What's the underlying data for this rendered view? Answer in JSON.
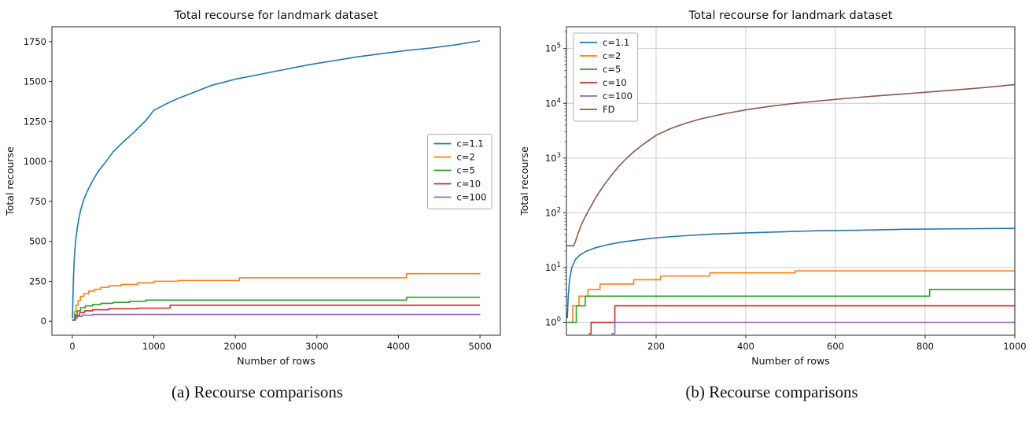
{
  "page": {
    "background": "#ffffff"
  },
  "colors": {
    "blue": "#1f77b4",
    "orange": "#ff7f0e",
    "green": "#2ca02c",
    "red": "#d62728",
    "purple": "#9467bd",
    "brown": "#8c564b",
    "grid": "#c9c9c9",
    "axis": "#262626",
    "legend_border": "#b0b0b0"
  },
  "chart_data": [
    {
      "type": "line",
      "caption": "(a) Recourse comparisons",
      "title": "Total recourse for landmark dataset",
      "xlabel": "Number of rows",
      "ylabel": "Total recourse",
      "yscale": "linear",
      "xlim": [
        -250,
        5250
      ],
      "ylim": [
        -88,
        1843
      ],
      "xticks": [
        0,
        1000,
        2000,
        3000,
        4000,
        5000
      ],
      "yticks": [
        0,
        250,
        500,
        750,
        1000,
        1250,
        1500,
        1750
      ],
      "grid": false,
      "legend": {
        "position": "center-right"
      },
      "series": [
        {
          "name": "c=1.1",
          "color_key": "blue",
          "step": false,
          "points": [
            [
              2,
              20
            ],
            [
              8,
              150
            ],
            [
              15,
              280
            ],
            [
              25,
              400
            ],
            [
              40,
              500
            ],
            [
              60,
              580
            ],
            [
              80,
              640
            ],
            [
              100,
              690
            ],
            [
              140,
              760
            ],
            [
              180,
              810
            ],
            [
              250,
              880
            ],
            [
              320,
              940
            ],
            [
              400,
              990
            ],
            [
              500,
              1060
            ],
            [
              620,
              1120
            ],
            [
              750,
              1180
            ],
            [
              900,
              1255
            ],
            [
              1000,
              1320
            ],
            [
              1150,
              1360
            ],
            [
              1300,
              1395
            ],
            [
              1500,
              1435
            ],
            [
              1700,
              1475
            ],
            [
              2000,
              1515
            ],
            [
              2300,
              1545
            ],
            [
              2600,
              1575
            ],
            [
              2900,
              1605
            ],
            [
              3200,
              1630
            ],
            [
              3500,
              1655
            ],
            [
              3800,
              1675
            ],
            [
              4100,
              1695
            ],
            [
              4400,
              1710
            ],
            [
              4700,
              1730
            ],
            [
              5000,
              1755
            ]
          ]
        },
        {
          "name": "c=2",
          "color_key": "orange",
          "step": true,
          "points": [
            [
              0,
              10
            ],
            [
              25,
              60
            ],
            [
              45,
              100
            ],
            [
              70,
              130
            ],
            [
              100,
              155
            ],
            [
              140,
              172
            ],
            [
              200,
              188
            ],
            [
              270,
              200
            ],
            [
              350,
              212
            ],
            [
              450,
              222
            ],
            [
              600,
              230
            ],
            [
              800,
              240
            ],
            [
              1000,
              250
            ],
            [
              1300,
              255
            ],
            [
              2050,
              272
            ],
            [
              4100,
              298
            ],
            [
              5000,
              300
            ]
          ]
        },
        {
          "name": "c=5",
          "color_key": "green",
          "step": true,
          "points": [
            [
              0,
              8
            ],
            [
              30,
              40
            ],
            [
              60,
              65
            ],
            [
              100,
              85
            ],
            [
              160,
              96
            ],
            [
              250,
              105
            ],
            [
              350,
              112
            ],
            [
              500,
              118
            ],
            [
              700,
              124
            ],
            [
              900,
              132
            ],
            [
              4100,
              150
            ],
            [
              5000,
              150
            ]
          ]
        },
        {
          "name": "c=10",
          "color_key": "red",
          "step": true,
          "points": [
            [
              0,
              6
            ],
            [
              40,
              35
            ],
            [
              90,
              55
            ],
            [
              150,
              65
            ],
            [
              250,
              72
            ],
            [
              450,
              78
            ],
            [
              800,
              82
            ],
            [
              1200,
              100
            ],
            [
              5000,
              100
            ]
          ]
        },
        {
          "name": "c=100",
          "color_key": "purple",
          "step": true,
          "points": [
            [
              0,
              4
            ],
            [
              25,
              20
            ],
            [
              60,
              30
            ],
            [
              120,
              38
            ],
            [
              250,
              42
            ],
            [
              5000,
              43
            ]
          ]
        }
      ]
    },
    {
      "type": "line",
      "caption": "(b) Recourse comparisons",
      "title": "Total recourse for landmark dataset",
      "xlabel": "Number of rows",
      "ylabel": "Total recourse",
      "yscale": "log",
      "xlim": [
        0,
        1000
      ],
      "ylim": [
        0.58,
        250000
      ],
      "xticks": [
        200,
        400,
        600,
        800,
        1000
      ],
      "ytick_exponents": [
        0,
        1,
        2,
        3,
        4,
        5
      ],
      "grid": true,
      "legend": {
        "position": "upper-left"
      },
      "series": [
        {
          "name": "c=1.1",
          "color_key": "blue",
          "step": false,
          "points": [
            [
              2,
              1.2
            ],
            [
              4,
              3
            ],
            [
              7,
              6
            ],
            [
              12,
              10
            ],
            [
              20,
              14
            ],
            [
              30,
              17
            ],
            [
              45,
              20
            ],
            [
              65,
              23
            ],
            [
              90,
              26
            ],
            [
              120,
              29
            ],
            [
              160,
              32
            ],
            [
              200,
              35
            ],
            [
              260,
              38
            ],
            [
              330,
              41
            ],
            [
              400,
              43
            ],
            [
              480,
              45
            ],
            [
              560,
              47
            ],
            [
              650,
              48
            ],
            [
              750,
              50
            ],
            [
              870,
              51
            ],
            [
              1000,
              52
            ]
          ]
        },
        {
          "name": "c=2",
          "color_key": "orange",
          "step": true,
          "points": [
            [
              2,
              1
            ],
            [
              14,
              2
            ],
            [
              28,
              3
            ],
            [
              48,
              4
            ],
            [
              75,
              5
            ],
            [
              150,
              6
            ],
            [
              210,
              7
            ],
            [
              320,
              8
            ],
            [
              510,
              8.7
            ],
            [
              1000,
              8.7
            ]
          ]
        },
        {
          "name": "c=5",
          "color_key": "green",
          "step": true,
          "points": [
            [
              3,
              1
            ],
            [
              22,
              2
            ],
            [
              42,
              3
            ],
            [
              810,
              4
            ],
            [
              1000,
              4
            ]
          ]
        },
        {
          "name": "c=10",
          "color_key": "red",
          "step": true,
          "points": [
            [
              50,
              0.62
            ],
            [
              55,
              1
            ],
            [
              108,
              2
            ],
            [
              1000,
              2
            ]
          ]
        },
        {
          "name": "c=100",
          "color_key": "purple",
          "step": true,
          "points": [
            [
              100,
              0.62
            ],
            [
              108,
              1
            ],
            [
              1000,
              1
            ]
          ]
        },
        {
          "name": "FD",
          "color_key": "brown",
          "step": false,
          "points": [
            [
              1,
              25
            ],
            [
              16,
              25
            ],
            [
              20,
              30
            ],
            [
              26,
              42
            ],
            [
              33,
              60
            ],
            [
              42,
              85
            ],
            [
              52,
              120
            ],
            [
              62,
              170
            ],
            [
              72,
              230
            ],
            [
              85,
              330
            ],
            [
              100,
              480
            ],
            [
              115,
              680
            ],
            [
              132,
              950
            ],
            [
              150,
              1300
            ],
            [
              170,
              1750
            ],
            [
              200,
              2600
            ],
            [
              230,
              3400
            ],
            [
              265,
              4300
            ],
            [
              300,
              5200
            ],
            [
              350,
              6400
            ],
            [
              400,
              7600
            ],
            [
              450,
              8700
            ],
            [
              500,
              9800
            ],
            [
              560,
              11000
            ],
            [
              620,
              12200
            ],
            [
              690,
              13600
            ],
            [
              760,
              15000
            ],
            [
              830,
              16600
            ],
            [
              900,
              18400
            ],
            [
              950,
              20000
            ],
            [
              1000,
              22000
            ]
          ]
        }
      ]
    }
  ]
}
